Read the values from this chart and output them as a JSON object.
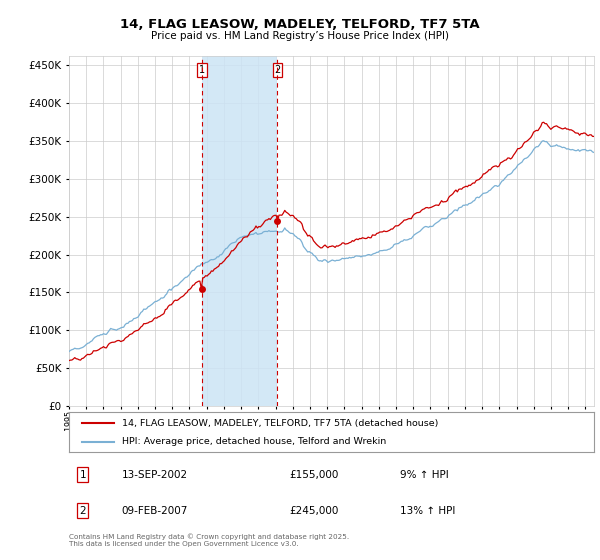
{
  "title": "14, FLAG LEASOW, MADELEY, TELFORD, TF7 5TA",
  "subtitle": "Price paid vs. HM Land Registry’s House Price Index (HPI)",
  "legend_label_red": "14, FLAG LEASOW, MADELEY, TELFORD, TF7 5TA (detached house)",
  "legend_label_blue": "HPI: Average price, detached house, Telford and Wrekin",
  "footer": "Contains HM Land Registry data © Crown copyright and database right 2025.\nThis data is licensed under the Open Government Licence v3.0.",
  "transaction1_date": "13-SEP-2002",
  "transaction1_price": "£155,000",
  "transaction1_hpi": "9% ↑ HPI",
  "transaction1_x": 2002.71,
  "transaction1_y": 155000,
  "transaction2_date": "09-FEB-2007",
  "transaction2_price": "£245,000",
  "transaction2_hpi": "13% ↑ HPI",
  "transaction2_x": 2007.11,
  "transaction2_y": 245000,
  "vline1_x": 2002.71,
  "vline2_x": 2007.11,
  "shade_color": "#cce4f5",
  "ylim": [
    0,
    462500
  ],
  "xlim_left": 1995.0,
  "xlim_right": 2025.5,
  "background_color": "#ffffff",
  "grid_color": "#cccccc",
  "red_color": "#cc0000",
  "blue_color": "#7ab0d4"
}
